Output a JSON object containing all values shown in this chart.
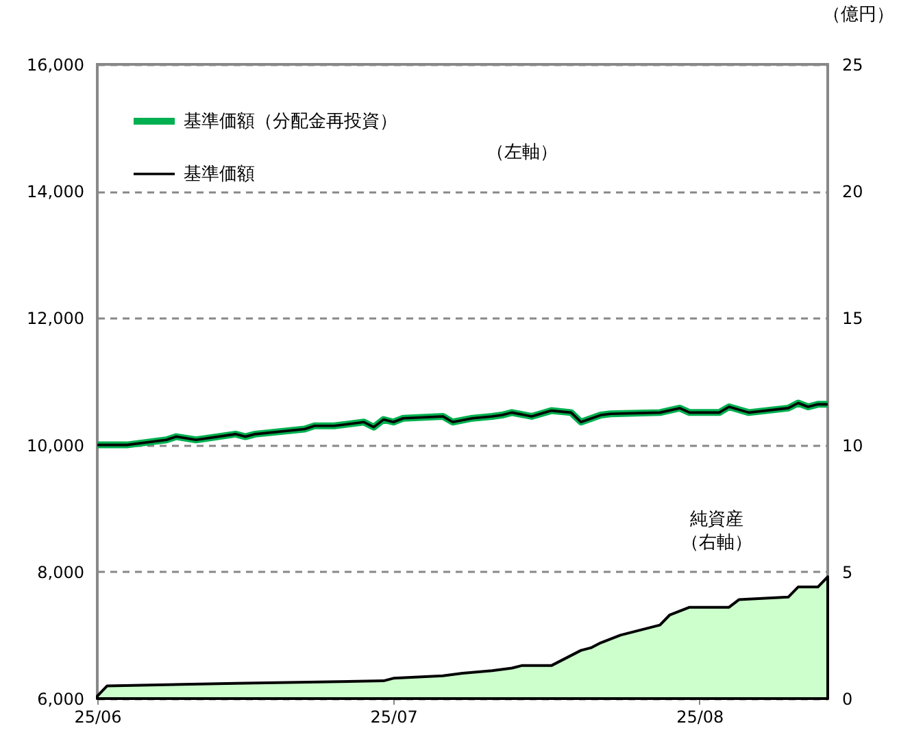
{
  "chart_data": {
    "type": "line",
    "y2label": "（億円）",
    "legend": "top left",
    "grid": "y",
    "xlim": [
      "--06-01",
      "--08-14"
    ],
    "xticks": [
      {
        "value": "--06-01",
        "label": "25/06"
      },
      {
        "value": "--07-01",
        "label": "25/07"
      },
      {
        "value": "--08-01",
        "label": "25/08"
      }
    ],
    "ylim": [
      6000,
      16000
    ],
    "yticks": [
      {
        "value": 6000,
        "label": "6,000"
      },
      {
        "value": 8000,
        "label": "8,000"
      },
      {
        "value": 10000,
        "label": "10,000"
      },
      {
        "value": 12000,
        "label": "12,000"
      },
      {
        "value": 14000,
        "label": "14,000"
      },
      {
        "value": 16000,
        "label": "16,000"
      }
    ],
    "y2lim": [
      0,
      25
    ],
    "y2ticks": [
      0,
      5,
      10,
      15,
      20,
      25
    ],
    "annotations": [
      "（左軸）",
      "純資産",
      "（右軸）"
    ],
    "series": [
      {
        "name": "基準価額（分配金再投資）",
        "color": "#00b050",
        "x": [
          "--06-01",
          "--06-04",
          "--06-08",
          "--06-09",
          "--06-11",
          "--06-15",
          "--06-16",
          "--06-17",
          "--06-22",
          "--06-23",
          "--06-25",
          "--06-28",
          "--06-29",
          "--06-30",
          "--07-01",
          "--07-02",
          "--07-06",
          "--07-07",
          "--07-09",
          "--07-11",
          "--07-12",
          "--07-13",
          "--07-15",
          "--07-17",
          "--07-19",
          "--07-20",
          "--07-22",
          "--07-23",
          "--07-28",
          "--07-30",
          "--07-31",
          "--08-03",
          "--08-04",
          "--08-06",
          "--08-10",
          "--08-11",
          "--08-12",
          "--08-13",
          "--08-14"
        ],
        "values": [
          10000,
          10000,
          10080,
          10130,
          10080,
          10170,
          10130,
          10170,
          10250,
          10300,
          10300,
          10360,
          10280,
          10400,
          10360,
          10420,
          10450,
          10360,
          10420,
          10450,
          10470,
          10510,
          10450,
          10540,
          10510,
          10360,
          10470,
          10490,
          10510,
          10580,
          10510,
          10510,
          10600,
          10510,
          10580,
          10660,
          10600,
          10640,
          10640
        ]
      },
      {
        "name": "基準価額",
        "color": "#000000",
        "x": [
          "--06-01",
          "--06-04",
          "--06-08",
          "--06-09",
          "--06-11",
          "--06-15",
          "--06-16",
          "--06-17",
          "--06-22",
          "--06-23",
          "--06-25",
          "--06-28",
          "--06-29",
          "--06-30",
          "--07-01",
          "--07-02",
          "--07-06",
          "--07-07",
          "--07-09",
          "--07-11",
          "--07-12",
          "--07-13",
          "--07-15",
          "--07-17",
          "--07-19",
          "--07-20",
          "--07-22",
          "--07-23",
          "--07-28",
          "--07-30",
          "--07-31",
          "--08-03",
          "--08-04",
          "--08-06",
          "--08-10",
          "--08-11",
          "--08-12",
          "--08-13",
          "--08-14"
        ],
        "values": [
          10000,
          10000,
          10080,
          10130,
          10080,
          10170,
          10130,
          10170,
          10250,
          10300,
          10300,
          10360,
          10280,
          10400,
          10360,
          10420,
          10450,
          10360,
          10420,
          10450,
          10470,
          10510,
          10450,
          10540,
          10510,
          10360,
          10470,
          10490,
          10510,
          10580,
          10510,
          10510,
          10600,
          10510,
          10580,
          10660,
          10600,
          10640,
          10640
        ]
      },
      {
        "type": "area",
        "axis": "y2",
        "color": "#ccffcc",
        "x": [
          "--06-01",
          "--06-02",
          "--06-15",
          "--06-30",
          "--07-01",
          "--07-06",
          "--07-08",
          "--07-11",
          "--07-13",
          "--07-14",
          "--07-17",
          "--07-20",
          "--07-21",
          "--07-22",
          "--07-24",
          "--07-28",
          "--07-29",
          "--07-31",
          "--08-04",
          "--08-05",
          "--08-10",
          "--08-11",
          "--08-13",
          "--08-14"
        ],
        "values": [
          0.1,
          0.5,
          0.6,
          0.7,
          0.8,
          0.9,
          1.0,
          1.1,
          1.2,
          1.3,
          1.3,
          1.9,
          2.0,
          2.2,
          2.5,
          2.9,
          3.3,
          3.6,
          3.6,
          3.9,
          4.0,
          4.4,
          4.4,
          4.8
        ]
      }
    ]
  }
}
